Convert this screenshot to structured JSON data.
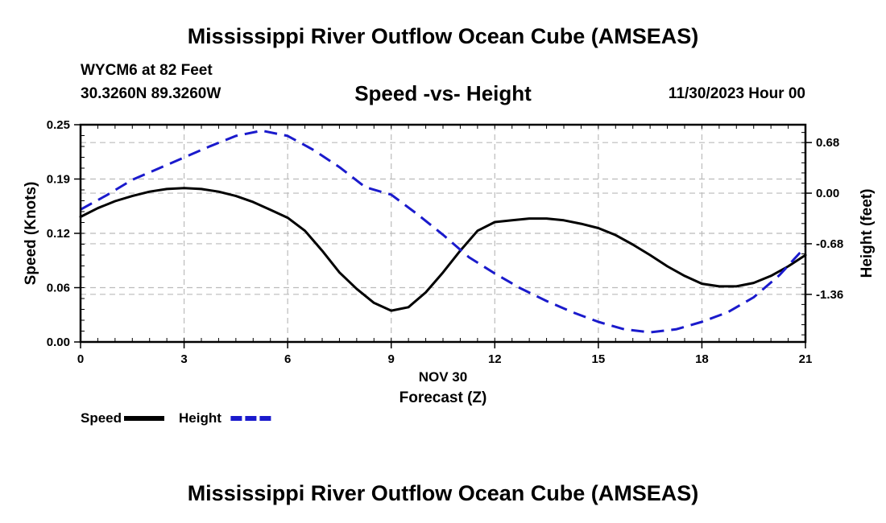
{
  "header": {
    "title": "Mississippi River Outflow Ocean Cube (AMSEAS)",
    "station": "WYCM6 at 82 Feet",
    "coordinates": "30.3260N  89.3260W",
    "subtitle": "Speed -vs- Height",
    "datetime": "11/30/2023 Hour 00"
  },
  "footer": {
    "title": "Mississippi River Outflow Ocean Cube (AMSEAS)"
  },
  "chart_data": {
    "type": "line",
    "title": "Speed -vs- Height",
    "xlabel": "Forecast (Z)",
    "xlabel_date": "NOV 30",
    "xlim": [
      0,
      21
    ],
    "x_ticks": [
      0,
      3,
      6,
      9,
      12,
      15,
      18,
      21
    ],
    "ylabel_left": "Speed (Knots)",
    "ylim_left": [
      0,
      0.25
    ],
    "y_ticks_left": [
      "0.00",
      "0.06",
      "0.12",
      "0.19",
      "0.25"
    ],
    "y_tick_values_left": [
      0,
      0.0625,
      0.125,
      0.1875,
      0.25
    ],
    "ylabel_right": "Height (feet)",
    "ylim_right": [
      -2.0,
      0.92
    ],
    "y_ticks_right": [
      "-1.36",
      "-0.68",
      "0.00",
      "0.68"
    ],
    "y_tick_values_right": [
      -1.36,
      -0.68,
      0.0,
      0.68
    ],
    "grid": true,
    "series": [
      {
        "name": "Speed",
        "axis": "left",
        "color": "#000000",
        "style": "solid",
        "x": [
          0,
          0.5,
          1,
          1.5,
          2,
          2.5,
          3,
          3.5,
          4,
          4.5,
          5,
          5.5,
          6,
          6.5,
          7,
          7.5,
          8,
          8.5,
          9,
          9.5,
          10,
          10.5,
          11,
          11.5,
          12,
          12.5,
          13,
          13.5,
          14,
          14.5,
          15,
          15.5,
          16,
          16.5,
          17,
          17.5,
          18,
          18.5,
          19,
          19.5,
          20,
          20.5,
          21
        ],
        "values": [
          0.144,
          0.154,
          0.162,
          0.168,
          0.173,
          0.176,
          0.177,
          0.176,
          0.173,
          0.168,
          0.161,
          0.152,
          0.143,
          0.128,
          0.105,
          0.08,
          0.061,
          0.045,
          0.036,
          0.04,
          0.057,
          0.08,
          0.105,
          0.128,
          0.138,
          0.14,
          0.142,
          0.142,
          0.14,
          0.136,
          0.131,
          0.123,
          0.112,
          0.1,
          0.087,
          0.076,
          0.067,
          0.064,
          0.064,
          0.068,
          0.076,
          0.087,
          0.1
        ]
      },
      {
        "name": "Height",
        "axis": "right",
        "color": "#1a1acc",
        "style": "dashed",
        "x": [
          0,
          0.75,
          1.5,
          2.25,
          3,
          3.75,
          4.5,
          5.25,
          6,
          6.75,
          7.5,
          8.25,
          9,
          9.75,
          10.5,
          11.25,
          12,
          12.75,
          13.5,
          14.25,
          15,
          15.75,
          16.5,
          17.25,
          18,
          18.75,
          19.5,
          20.25,
          21
        ],
        "values": [
          -0.22,
          -0.03,
          0.18,
          0.33,
          0.48,
          0.63,
          0.77,
          0.84,
          0.77,
          0.58,
          0.35,
          0.08,
          -0.02,
          -0.28,
          -0.56,
          -0.86,
          -1.08,
          -1.28,
          -1.45,
          -1.6,
          -1.73,
          -1.83,
          -1.87,
          -1.83,
          -1.73,
          -1.6,
          -1.4,
          -1.1,
          -0.72
        ]
      }
    ],
    "legend": [
      {
        "label": "Speed",
        "color": "#000000",
        "style": "solid"
      },
      {
        "label": "Height",
        "color": "#1a1acc",
        "style": "dashed"
      }
    ],
    "legend_position": "bottom-left"
  }
}
